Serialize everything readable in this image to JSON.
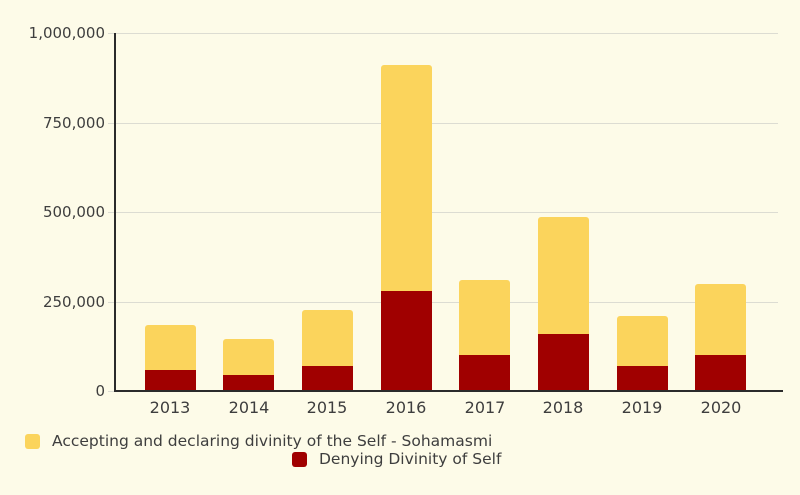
{
  "chart_data": {
    "type": "bar",
    "stacked": true,
    "title": "",
    "xlabel": "",
    "ylabel": "",
    "categories": [
      "2013",
      "2014",
      "2015",
      "2016",
      "2017",
      "2018",
      "2019",
      "2020"
    ],
    "series": [
      {
        "name": "Denying Divinity of Self",
        "color": "#A00000",
        "stack_order": "bottom",
        "values": [
          60000,
          45000,
          70000,
          280000,
          100000,
          160000,
          70000,
          100000
        ]
      },
      {
        "name": "Accepting and declaring divinity of the Self - Sohamasmi",
        "color": "#FBD45C",
        "stack_order": "top",
        "values": [
          125000,
          100000,
          155000,
          630000,
          210000,
          325000,
          140000,
          200000
        ]
      }
    ],
    "stack_totals": [
      185000,
      145000,
      225000,
      910000,
      310000,
      485000,
      210000,
      300000
    ],
    "ylim": [
      0,
      1000000
    ],
    "y_ticks": [
      {
        "value": 1000000,
        "label": "1,000,000"
      },
      {
        "value": 750000,
        "label": "750,000"
      },
      {
        "value": 500000,
        "label": "500,000"
      },
      {
        "value": 250000,
        "label": "250,000"
      },
      {
        "value": 0,
        "label": "0"
      }
    ],
    "grid": true,
    "legend_position": "bottom"
  },
  "legend": {
    "items": [
      {
        "label": "Accepting and declaring divinity of the Self - Sohamasmi",
        "color": "#FBD45C"
      },
      {
        "label": "Denying Divinity of Self",
        "color": "#A00000"
      }
    ]
  },
  "colors": {
    "background": "#FDFBE8",
    "accepting_yellow": "#FBD45C",
    "denying_red": "#A00000",
    "gridline": "#DCDCD2",
    "axis": "#2B2B2B",
    "text": "#3E3E3E"
  }
}
